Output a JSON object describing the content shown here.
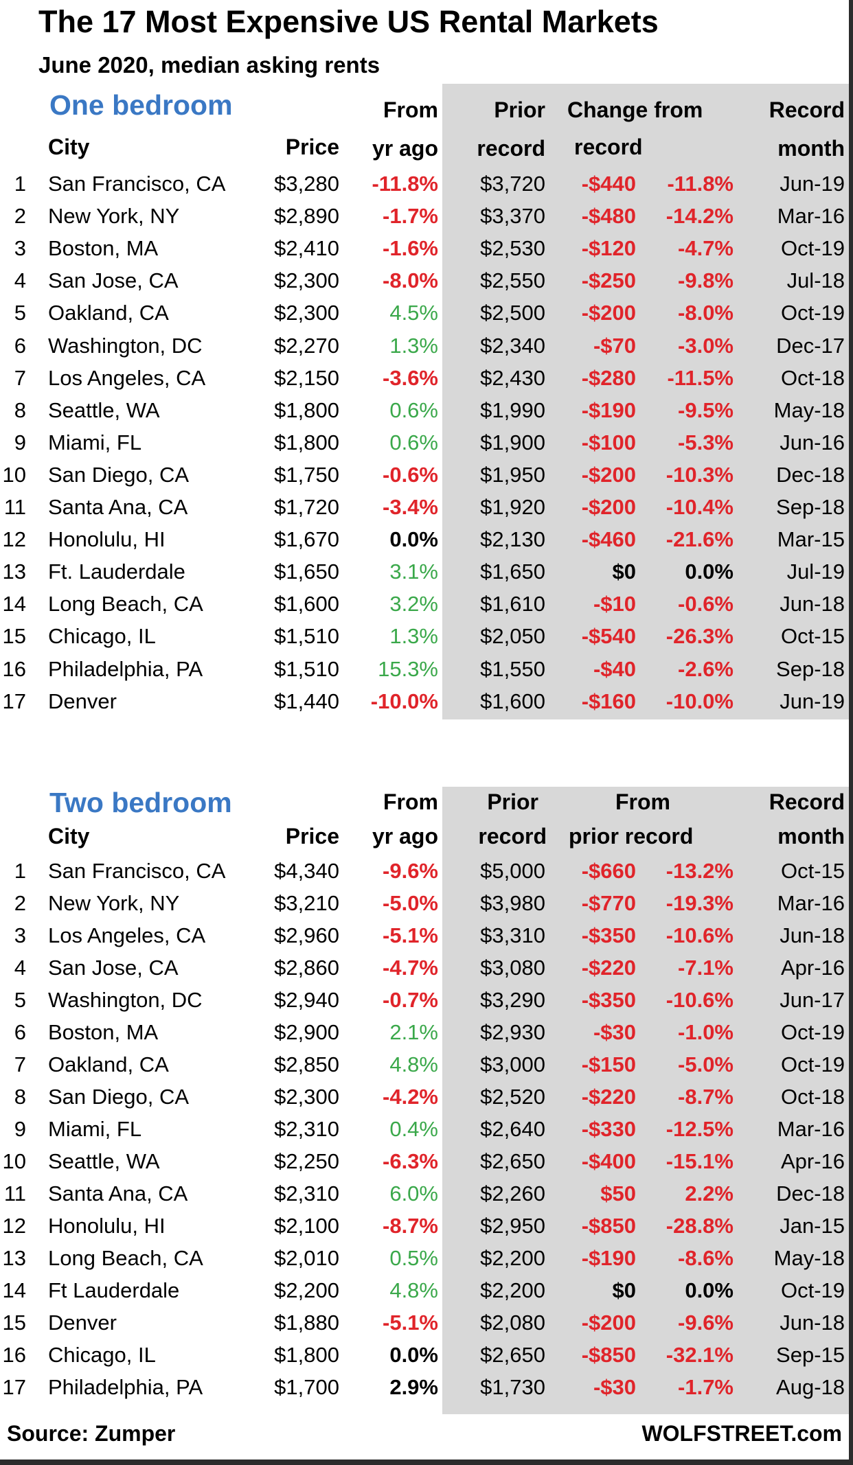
{
  "title": "The 17 Most Expensive US Rental Markets",
  "subtitle": "June 2020, median asking rents",
  "footer": {
    "source": "Source: Zumper",
    "brand": "WOLFSTREET.com"
  },
  "colors": {
    "section_title": "#3a78c4",
    "negative": "#e0242a",
    "positive": "#3aa84a",
    "shade": "#d8d8d8"
  },
  "chart_data": [
    {
      "type": "table",
      "section_title": "One bedroom",
      "headers": {
        "city": "City",
        "price": "Price",
        "yr_top": "From",
        "yr_bottom": "yr ago",
        "prior_top": "Prior",
        "prior_bottom": "record",
        "change_top": "Change from",
        "change_bottom": "record",
        "month_top": "Record",
        "month_bottom": "month"
      },
      "rows": [
        {
          "rank": "1",
          "city": "San Francisco, CA",
          "price": "$3,280",
          "yoy": "-11.8%",
          "prior": "$3,720",
          "chg_abs": "-$440",
          "chg_pct": "-11.8%",
          "month": "Jun-19"
        },
        {
          "rank": "2",
          "city": "New York, NY",
          "price": "$2,890",
          "yoy": "-1.7%",
          "prior": "$3,370",
          "chg_abs": "-$480",
          "chg_pct": "-14.2%",
          "month": "Mar-16"
        },
        {
          "rank": "3",
          "city": "Boston, MA",
          "price": "$2,410",
          "yoy": "-1.6%",
          "prior": "$2,530",
          "chg_abs": "-$120",
          "chg_pct": "-4.7%",
          "month": "Oct-19"
        },
        {
          "rank": "4",
          "city": "San Jose, CA",
          "price": "$2,300",
          "yoy": "-8.0%",
          "prior": "$2,550",
          "chg_abs": "-$250",
          "chg_pct": "-9.8%",
          "month": "Jul-18"
        },
        {
          "rank": "5",
          "city": "Oakland, CA",
          "price": "$2,300",
          "yoy": "4.5%",
          "prior": "$2,500",
          "chg_abs": "-$200",
          "chg_pct": "-8.0%",
          "month": "Oct-19"
        },
        {
          "rank": "6",
          "city": "Washington, DC",
          "price": "$2,270",
          "yoy": "1.3%",
          "prior": "$2,340",
          "chg_abs": "-$70",
          "chg_pct": "-3.0%",
          "month": "Dec-17"
        },
        {
          "rank": "7",
          "city": "Los Angeles, CA",
          "price": "$2,150",
          "yoy": "-3.6%",
          "prior": "$2,430",
          "chg_abs": "-$280",
          "chg_pct": "-11.5%",
          "month": "Oct-18"
        },
        {
          "rank": "8",
          "city": "Seattle, WA",
          "price": "$1,800",
          "yoy": "0.6%",
          "prior": "$1,990",
          "chg_abs": "-$190",
          "chg_pct": "-9.5%",
          "month": "May-18"
        },
        {
          "rank": "9",
          "city": "Miami, FL",
          "price": "$1,800",
          "yoy": "0.6%",
          "prior": "$1,900",
          "chg_abs": "-$100",
          "chg_pct": "-5.3%",
          "month": "Jun-16"
        },
        {
          "rank": "10",
          "city": "San Diego, CA",
          "price": "$1,750",
          "yoy": "-0.6%",
          "prior": "$1,950",
          "chg_abs": "-$200",
          "chg_pct": "-10.3%",
          "month": "Dec-18"
        },
        {
          "rank": "11",
          "city": "Santa Ana, CA",
          "price": "$1,720",
          "yoy": "-3.4%",
          "prior": "$1,920",
          "chg_abs": "-$200",
          "chg_pct": "-10.4%",
          "month": "Sep-18"
        },
        {
          "rank": "12",
          "city": "Honolulu, HI",
          "price": "$1,670",
          "yoy": "0.0%",
          "prior": "$2,130",
          "chg_abs": "-$460",
          "chg_pct": "-21.6%",
          "month": "Mar-15"
        },
        {
          "rank": "13",
          "city": "Ft. Lauderdale",
          "price": "$1,650",
          "yoy": "3.1%",
          "prior": "$1,650",
          "chg_abs": "$0",
          "chg_pct": "0.0%",
          "month": "Jul-19"
        },
        {
          "rank": "14",
          "city": "Long Beach, CA",
          "price": "$1,600",
          "yoy": "3.2%",
          "prior": "$1,610",
          "chg_abs": "-$10",
          "chg_pct": "-0.6%",
          "month": "Jun-18"
        },
        {
          "rank": "15",
          "city": "Chicago, IL",
          "price": "$1,510",
          "yoy": "1.3%",
          "prior": "$2,050",
          "chg_abs": "-$540",
          "chg_pct": "-26.3%",
          "month": "Oct-15"
        },
        {
          "rank": "16",
          "city": "Philadelphia, PA",
          "price": "$1,510",
          "yoy": "15.3%",
          "prior": "$1,550",
          "chg_abs": "-$40",
          "chg_pct": "-2.6%",
          "month": "Sep-18"
        },
        {
          "rank": "17",
          "city": "Denver",
          "price": "$1,440",
          "yoy": "-10.0%",
          "prior": "$1,600",
          "chg_abs": "-$160",
          "chg_pct": "-10.0%",
          "month": "Jun-19"
        }
      ]
    },
    {
      "type": "table",
      "section_title": "Two bedroom",
      "headers": {
        "city": "City",
        "price": "Price",
        "yr_top": "From",
        "yr_bottom": "yr ago",
        "prior_top": "Prior",
        "prior_bottom": "record",
        "change_top": "From",
        "change_bottom": "prior record",
        "month_top": "Record",
        "month_bottom": "month"
      },
      "rows": [
        {
          "rank": "1",
          "city": "San Francisco, CA",
          "price": "$4,340",
          "yoy": "-9.6%",
          "prior": "$5,000",
          "chg_abs": "-$660",
          "chg_pct": "-13.2%",
          "month": "Oct-15"
        },
        {
          "rank": "2",
          "city": "New York, NY",
          "price": "$3,210",
          "yoy": "-5.0%",
          "prior": "$3,980",
          "chg_abs": "-$770",
          "chg_pct": "-19.3%",
          "month": "Mar-16"
        },
        {
          "rank": "3",
          "city": "Los Angeles, CA",
          "price": "$2,960",
          "yoy": "-5.1%",
          "prior": "$3,310",
          "chg_abs": "-$350",
          "chg_pct": "-10.6%",
          "month": "Jun-18"
        },
        {
          "rank": "4",
          "city": "San Jose, CA",
          "price": "$2,860",
          "yoy": "-4.7%",
          "prior": "$3,080",
          "chg_abs": "-$220",
          "chg_pct": "-7.1%",
          "month": "Apr-16"
        },
        {
          "rank": "5",
          "city": "Washington, DC",
          "price": "$2,940",
          "yoy": "-0.7%",
          "prior": "$3,290",
          "chg_abs": "-$350",
          "chg_pct": "-10.6%",
          "month": "Jun-17"
        },
        {
          "rank": "6",
          "city": "Boston, MA",
          "price": "$2,900",
          "yoy": "2.1%",
          "prior": "$2,930",
          "chg_abs": "-$30",
          "chg_pct": "-1.0%",
          "month": "Oct-19"
        },
        {
          "rank": "7",
          "city": "Oakland, CA",
          "price": "$2,850",
          "yoy": "4.8%",
          "prior": "$3,000",
          "chg_abs": "-$150",
          "chg_pct": "-5.0%",
          "month": "Oct-19"
        },
        {
          "rank": "8",
          "city": "San Diego, CA",
          "price": "$2,300",
          "yoy": "-4.2%",
          "prior": "$2,520",
          "chg_abs": "-$220",
          "chg_pct": "-8.7%",
          "month": "Oct-18"
        },
        {
          "rank": "9",
          "city": "Miami, FL",
          "price": "$2,310",
          "yoy": "0.4%",
          "prior": "$2,640",
          "chg_abs": "-$330",
          "chg_pct": "-12.5%",
          "month": "Mar-16"
        },
        {
          "rank": "10",
          "city": "Seattle, WA",
          "price": "$2,250",
          "yoy": "-6.3%",
          "prior": "$2,650",
          "chg_abs": "-$400",
          "chg_pct": "-15.1%",
          "month": "Apr-16"
        },
        {
          "rank": "11",
          "city": "Santa Ana, CA",
          "price": "$2,310",
          "yoy": "6.0%",
          "prior": "$2,260",
          "chg_abs": "$50",
          "chg_pct": "2.2%",
          "month": "Dec-18"
        },
        {
          "rank": "12",
          "city": "Honolulu, HI",
          "price": "$2,100",
          "yoy": "-8.7%",
          "prior": "$2,950",
          "chg_abs": "-$850",
          "chg_pct": "-28.8%",
          "month": "Jan-15"
        },
        {
          "rank": "13",
          "city": "Long Beach, CA",
          "price": "$2,010",
          "yoy": "0.5%",
          "prior": "$2,200",
          "chg_abs": "-$190",
          "chg_pct": "-8.6%",
          "month": "May-18"
        },
        {
          "rank": "14",
          "city": "Ft Lauderdale",
          "price": "$2,200",
          "yoy": "4.8%",
          "prior": "$2,200",
          "chg_abs": "$0",
          "chg_pct": "0.0%",
          "month": "Oct-19"
        },
        {
          "rank": "15",
          "city": "Denver",
          "price": "$1,880",
          "yoy": "-5.1%",
          "prior": "$2,080",
          "chg_abs": "-$200",
          "chg_pct": "-9.6%",
          "month": "Jun-18"
        },
        {
          "rank": "16",
          "city": "Chicago, IL",
          "price": "$1,800",
          "yoy": "0.0%",
          "prior": "$2,650",
          "chg_abs": "-$850",
          "chg_pct": "-32.1%",
          "month": "Sep-15"
        },
        {
          "rank": "17",
          "city": "Philadelphia, PA",
          "price": "$1,700",
          "yoy": "2.9%",
          "prior": "$1,730",
          "chg_abs": "-$30",
          "chg_pct": "-1.7%",
          "month": "Aug-18"
        }
      ]
    }
  ]
}
